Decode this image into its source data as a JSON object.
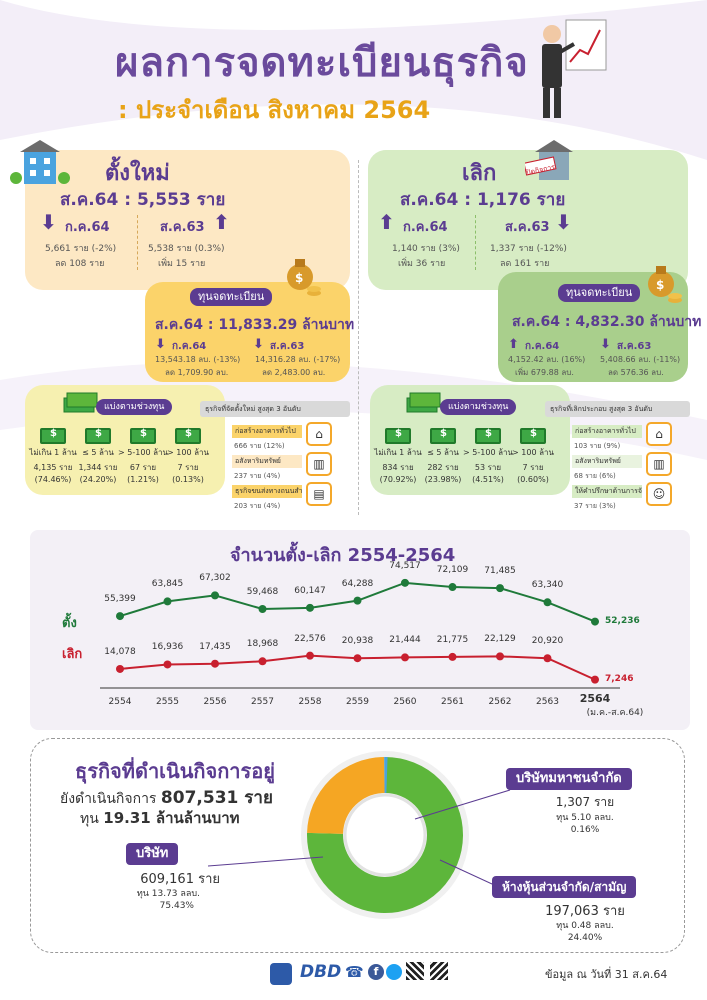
{
  "header": {
    "title": "ผลการจดทะเบียนธุรกิจ",
    "subtitle": ": ประจำเดือน สิงหาคม 2564"
  },
  "new_biz": {
    "title": "ตั้งใหม่",
    "headline": "ส.ค.64 : 5,553 ราย",
    "cmp1_label": "ก.ค.64",
    "cmp1_line1": "5,661 ราย (-2%)",
    "cmp1_line2": "ลด 108 ราย",
    "cmp2_label": "ส.ค.63",
    "cmp2_line1": "5,538 ราย (0.3%)",
    "cmp2_line2": "เพิ่ม 15 ราย",
    "capital_title": "ทุนจดทะเบียน",
    "capital_headline": "ส.ค.64 : 11,833.29 ล้านบาท",
    "cap1_label": "ก.ค.64",
    "cap1_line1": "13,543.18 ลบ. (-13%)",
    "cap1_line2": "ลด 1,709.90 ลบ.",
    "cap2_label": "ส.ค.63",
    "cap2_line1": "14,316.28 ลบ. (-17%)",
    "cap2_line2": "ลด 2,483.00 ลบ.",
    "range_title": "แบ่งตามช่วงทุน",
    "ranges": [
      {
        "label": "ไม่เกิน 1 ล้าน",
        "count": "4,135 ราย",
        "pct": "(74.46%)"
      },
      {
        "label": "≤ 5 ล้าน",
        "count": "1,344 ราย",
        "pct": "(24.20%)"
      },
      {
        "label": "> 5-100 ล้าน",
        "count": "67 ราย",
        "pct": "(1.21%)"
      },
      {
        "label": "> 100 ล้าน",
        "count": "7 ราย",
        "pct": "(0.13%)"
      }
    ],
    "top_title": "ธุรกิจที่จัดตั้งใหม่ สูงสุด 3 อันดับ",
    "top": [
      {
        "name": "ก่อสร้างอาคารทั่วไป",
        "val": "666 ราย (12%)"
      },
      {
        "name": "อสังหาริมทรัพย์",
        "val": "237 ราย (4%)"
      },
      {
        "name": "ธุรกิจขนส่งทางถนนสำหรับขนส่งสินค้า",
        "val": "203 ราย (4%)"
      }
    ]
  },
  "closed_biz": {
    "title": "เลิก",
    "stamp": "ปิดกิจการ",
    "headline": "ส.ค.64 : 1,176 ราย",
    "cmp1_label": "ก.ค.64",
    "cmp1_line1": "1,140 ราย (3%)",
    "cmp1_line2": "เพิ่ม 36 ราย",
    "cmp2_label": "ส.ค.63",
    "cmp2_line1": "1,337 ราย (-12%)",
    "cmp2_line2": "ลด 161 ราย",
    "capital_title": "ทุนจดทะเบียน",
    "capital_headline": "ส.ค.64 : 4,832.30 ล้านบาท",
    "cap1_label": "ก.ค.64",
    "cap1_line1": "4,152.42 ลบ. (16%)",
    "cap1_line2": "เพิ่ม 679.88 ลบ.",
    "cap2_label": "ส.ค.63",
    "cap2_line1": "5,408.66 ลบ. (-11%)",
    "cap2_line2": "ลด 576.36 ลบ.",
    "range_title": "แบ่งตามช่วงทุน",
    "ranges": [
      {
        "label": "ไม่เกิน 1 ล้าน",
        "count": "834 ราย",
        "pct": "(70.92%)"
      },
      {
        "label": "≤ 5 ล้าน",
        "count": "282 ราย",
        "pct": "(23.98%)"
      },
      {
        "label": "> 5-100 ล้าน",
        "count": "53 ราย",
        "pct": "(4.51%)"
      },
      {
        "label": "> 100 ล้าน",
        "count": "7 ราย",
        "pct": "(0.60%)"
      }
    ],
    "top_title": "ธุรกิจที่เลิกประกอบ สูงสุด 3 อันดับ",
    "top": [
      {
        "name": "ก่อสร้างอาคารทั่วไป",
        "val": "103 ราย (9%)"
      },
      {
        "name": "อสังหาริมทรัพย์",
        "val": "68 ราย (6%)"
      },
      {
        "name": "ให้คำปรึกษาด้านการจัดการ",
        "val": "37 ราย (3%)"
      }
    ]
  },
  "chart_data": {
    "type": "line",
    "title": "จำนวนตั้ง-เลิก 2554-2564",
    "categories": [
      "2554",
      "2555",
      "2556",
      "2557",
      "2558",
      "2559",
      "2560",
      "2561",
      "2562",
      "2563",
      "2564"
    ],
    "last_category_note": "(ม.ค.-ส.ค.64)",
    "series": [
      {
        "name": "ตั้ง",
        "color": "#1f7a3a",
        "values": [
          55399,
          63845,
          67302,
          59468,
          60147,
          64288,
          74517,
          72109,
          71485,
          63340,
          52236
        ],
        "labels": [
          "55,399",
          "63,845",
          "67,302",
          "59,468",
          "60,147",
          "64,288",
          "74,517",
          "72,109",
          "71,485",
          "63,340",
          "52,236"
        ]
      },
      {
        "name": "เลิก",
        "color": "#c8202f",
        "values": [
          14078,
          16936,
          17435,
          18968,
          22576,
          20938,
          21444,
          21775,
          22129,
          20920,
          7246
        ],
        "labels": [
          "14,078",
          "16,936",
          "17,435",
          "18,968",
          "22,576",
          "20,938",
          "21,444",
          "21,775",
          "22,129",
          "20,920",
          "7,246"
        ]
      }
    ]
  },
  "operating": {
    "title": "ธุรกิจที่ดำเนินกิจการอยู่",
    "line1_prefix": "ยังดำเนินกิจการ",
    "line1_value": "807,531 ราย",
    "line2_prefix": "ทุน",
    "line2_value": "19.31 ล้านล้านบาท",
    "donut": [
      {
        "name": "บริษัท",
        "pct": 75.43,
        "color": "#5db63b"
      },
      {
        "name": "ห้างหุ้นส่วนจำกัด/สามัญ",
        "pct": 24.4,
        "color": "#f5a623"
      },
      {
        "name": "บริษัทมหาชนจำกัด",
        "pct": 0.16,
        "color": "#4aa3df"
      }
    ],
    "company": {
      "label": "บริษัท",
      "count": "609,161 ราย",
      "capital": "ทุน 13.73 ลลบ.",
      "pct": "75.43%"
    },
    "public": {
      "label": "บริษัทมหาชนจำกัด",
      "count": "1,307 ราย",
      "capital": "ทุน 5.10 ลลบ.",
      "pct": "0.16%"
    },
    "partnership": {
      "label": "ห้างหุ้นส่วนจำกัด/สามัญ",
      "count": "197,063 ราย",
      "capital": "ทุน 0.48 ลลบ.",
      "pct": "24.40%"
    }
  },
  "footer": {
    "date_note": "ข้อมูล ณ วันที่ 31 ส.ค.64",
    "logo_text": "DBD"
  }
}
